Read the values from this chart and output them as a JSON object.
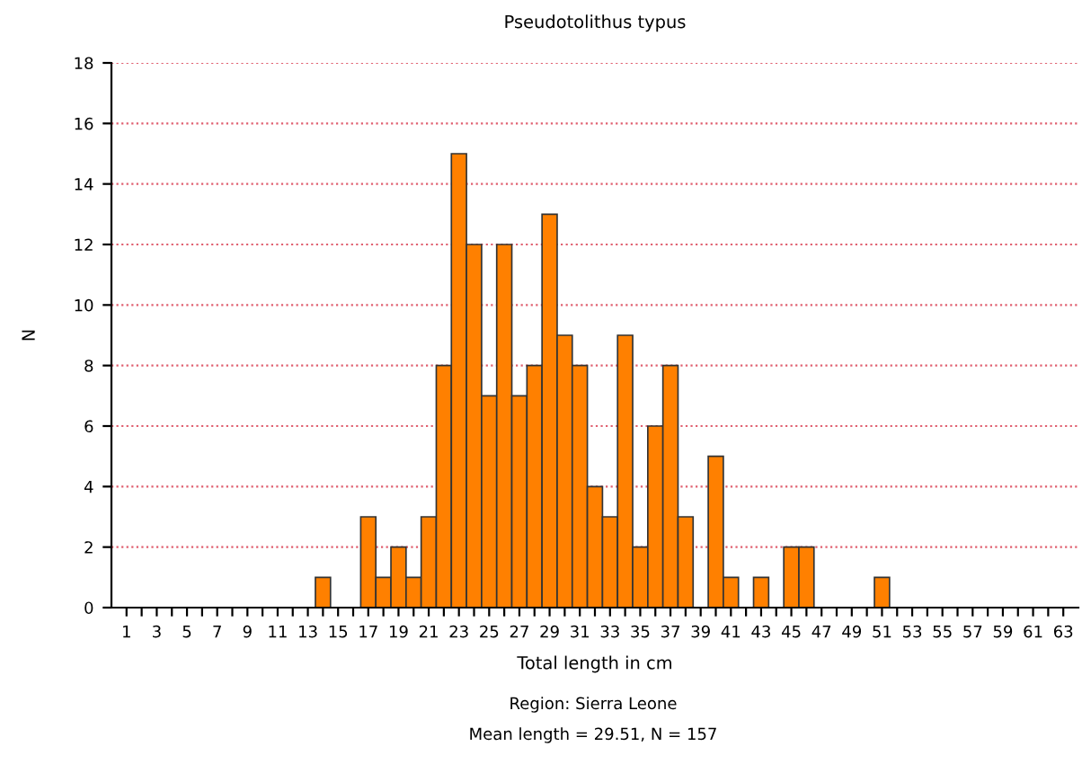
{
  "chart_data": {
    "type": "bar",
    "title": "Pseudotolithus typus",
    "xlabel": "Total length in cm",
    "ylabel": "N",
    "categories": [
      "1",
      null,
      "3",
      null,
      "5",
      null,
      "7",
      null,
      "9",
      null,
      "11",
      null,
      "13",
      null,
      "15",
      null,
      "17",
      null,
      "19",
      null,
      "21",
      null,
      "23",
      null,
      "25",
      null,
      "27",
      null,
      "29",
      null,
      "31",
      null,
      "33",
      null,
      "35",
      null,
      "37",
      null,
      "39",
      null,
      "41",
      null,
      "43",
      null,
      "45",
      null,
      "47",
      null,
      "49",
      null,
      "51",
      null,
      "53",
      null,
      "55",
      null,
      "57",
      null,
      "59",
      null,
      "61",
      null,
      "63"
    ],
    "values": [
      0,
      0,
      0,
      0,
      0,
      0,
      0,
      0,
      0,
      0,
      0,
      0,
      0,
      1,
      0,
      0,
      3,
      1,
      2,
      1,
      3,
      8,
      15,
      12,
      7,
      12,
      7,
      8,
      13,
      9,
      8,
      4,
      3,
      9,
      2,
      6,
      8,
      3,
      0,
      5,
      1,
      0,
      1,
      0,
      2,
      2,
      0,
      0,
      0,
      0,
      1,
      0,
      0,
      0,
      0,
      0,
      0,
      0,
      0,
      0,
      0,
      0,
      0
    ],
    "color": "#ff8000",
    "ylim": [
      0,
      18
    ],
    "yticks": [
      0,
      2,
      4,
      6,
      8,
      10,
      12,
      14,
      16,
      18
    ],
    "grid": "y",
    "annotations": [
      "Region: Sierra Leone",
      "Mean length = 29.51, N = 157"
    ]
  }
}
